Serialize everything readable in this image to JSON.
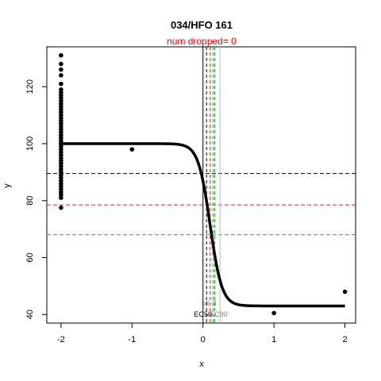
{
  "chart_data": {
    "type": "scatter",
    "title": "034/HFO 161",
    "subtitle": "num dropped= 0",
    "xlabel": "x",
    "ylabel": "y",
    "xlim": [
      -2.2,
      2.15
    ],
    "ylim": [
      37,
      134
    ],
    "x_ticks": [
      -2,
      -1,
      0,
      1,
      2
    ],
    "y_ticks": [
      40,
      60,
      80,
      100,
      120
    ],
    "grid": false,
    "colors": {
      "subtitle": "#ff0000",
      "points": "#000000",
      "curve": "#000000",
      "line_black": "#000000",
      "line_red": "#d62728",
      "line_green": "#2ca02c",
      "line_gray": "#bbbbbb",
      "anno_gray": "#808080"
    },
    "points": [
      {
        "x": -2,
        "y": 131
      },
      {
        "x": -2,
        "y": 128
      },
      {
        "x": -2,
        "y": 126
      },
      {
        "x": -2,
        "y": 124
      },
      {
        "x": -2,
        "y": 121
      },
      {
        "x": -2,
        "y": 119
      },
      {
        "x": -2,
        "y": 118
      },
      {
        "x": -2,
        "y": 117
      },
      {
        "x": -2,
        "y": 116
      },
      {
        "x": -2,
        "y": 115
      },
      {
        "x": -2,
        "y": 114
      },
      {
        "x": -2,
        "y": 113
      },
      {
        "x": -2,
        "y": 112
      },
      {
        "x": -2,
        "y": 111
      },
      {
        "x": -2,
        "y": 110
      },
      {
        "x": -2,
        "y": 109
      },
      {
        "x": -2,
        "y": 108
      },
      {
        "x": -2,
        "y": 107
      },
      {
        "x": -2,
        "y": 106
      },
      {
        "x": -2,
        "y": 105
      },
      {
        "x": -2,
        "y": 104
      },
      {
        "x": -2,
        "y": 103
      },
      {
        "x": -2,
        "y": 102
      },
      {
        "x": -2,
        "y": 101
      },
      {
        "x": -2,
        "y": 100
      },
      {
        "x": -2,
        "y": 99
      },
      {
        "x": -2,
        "y": 98
      },
      {
        "x": -2,
        "y": 97
      },
      {
        "x": -2,
        "y": 96
      },
      {
        "x": -2,
        "y": 95
      },
      {
        "x": -2,
        "y": 94
      },
      {
        "x": -2,
        "y": 93
      },
      {
        "x": -2,
        "y": 92
      },
      {
        "x": -2,
        "y": 91
      },
      {
        "x": -2,
        "y": 90
      },
      {
        "x": -2,
        "y": 89
      },
      {
        "x": -2,
        "y": 88
      },
      {
        "x": -2,
        "y": 87
      },
      {
        "x": -2,
        "y": 86
      },
      {
        "x": -2,
        "y": 85
      },
      {
        "x": -2,
        "y": 84
      },
      {
        "x": -2,
        "y": 83
      },
      {
        "x": -2,
        "y": 82
      },
      {
        "x": -2,
        "y": 81
      },
      {
        "x": -2,
        "y": 77.5
      },
      {
        "x": -1,
        "y": 98
      },
      {
        "x": 1,
        "y": 40.5
      },
      {
        "x": 2,
        "y": 48
      }
    ],
    "curve": {
      "top": 100,
      "bottom": 43,
      "midpoint": 0.1,
      "slope": 12,
      "x_range": [
        -2,
        2
      ]
    },
    "hlines": [
      {
        "y": 89.5,
        "color": "line_black",
        "dash": true
      },
      {
        "y": 78.5,
        "color": "line_red",
        "dash": true
      },
      {
        "y": 68,
        "color": "line_green",
        "dash": true
      }
    ],
    "vlines": [
      {
        "x": 0,
        "color": "line_black",
        "dash": false
      },
      {
        "x": 0.05,
        "color": "line_black",
        "dash": true
      },
      {
        "x": 0.1,
        "color": "line_red",
        "dash": true
      },
      {
        "x": 0.14,
        "color": "line_green",
        "dash": true
      },
      {
        "x": 0.165,
        "color": "line_green",
        "dash": true
      },
      {
        "x": 0.24,
        "color": "line_gray",
        "dash": false
      }
    ],
    "annotations": [
      {
        "text": "sd",
        "x": 0.03,
        "y": 44,
        "color": "anno_gray",
        "anchor": "middle"
      },
      {
        "text": "3",
        "x": 0.16,
        "y": 44,
        "color": "line_green",
        "anchor": "middle"
      },
      {
        "text": "EC50",
        "x": 0.0,
        "y": 40,
        "color": "line_black",
        "anchor": "middle"
      },
      {
        "text": "EC90",
        "x": 0.22,
        "y": 40,
        "color": "anno_gray",
        "anchor": "middle"
      }
    ]
  }
}
